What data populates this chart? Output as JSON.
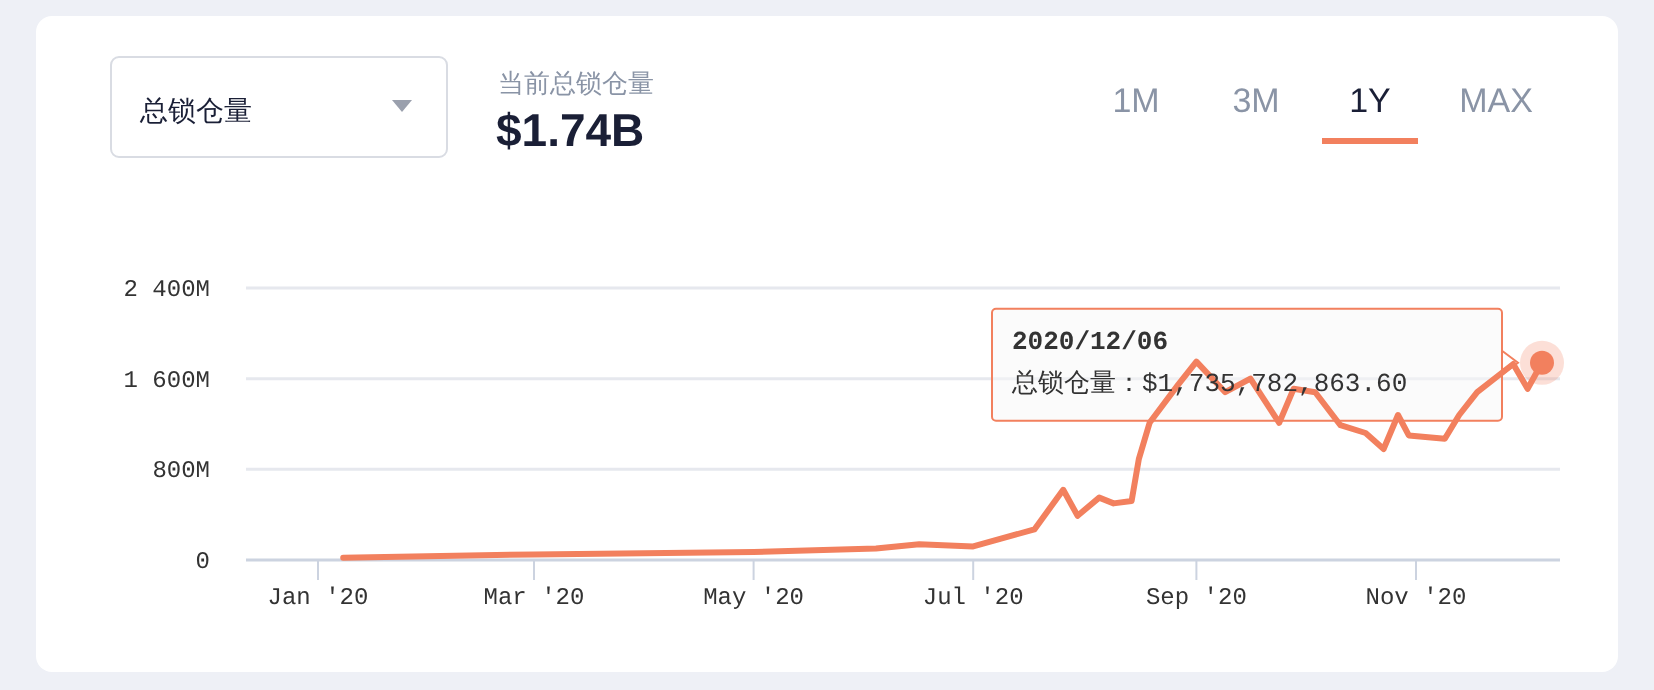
{
  "chart_data": {
    "type": "line",
    "title": "当前总锁仓量",
    "subtitle": "$1.74B",
    "annotations": [
      "总锁仓量",
      "1M",
      "3M",
      "1Y",
      "MAX",
      "2020/12/06",
      "总锁仓量：$1,735,782,863.60"
    ],
    "x": [
      "2020-01-08",
      "2020-03-01",
      "2020-05-01",
      "2020-06-04",
      "2020-06-16",
      "2020-07-01",
      "2020-07-18",
      "2020-07-26",
      "2020-07-30",
      "2020-08-05",
      "2020-08-09",
      "2020-08-14",
      "2020-08-16",
      "2020-08-19",
      "2020-08-27",
      "2020-09-01",
      "2020-09-09",
      "2020-09-16",
      "2020-09-24",
      "2020-09-28",
      "2020-10-04",
      "2020-10-11",
      "2020-10-18",
      "2020-10-23",
      "2020-10-27",
      "2020-10-30",
      "2020-11-09",
      "2020-11-13",
      "2020-11-18",
      "2020-11-28",
      "2020-12-02",
      "2020-12-06"
    ],
    "series": [
      {
        "color": "#f2805e",
        "values": [
          20,
          50,
          70,
          100,
          140,
          120,
          270,
          620,
          390,
          550,
          500,
          520,
          890,
          1210,
          1550,
          1750,
          1480,
          1600,
          1210,
          1510,
          1480,
          1190,
          1120,
          980,
          1280,
          1100,
          1070,
          1280,
          1480,
          1730,
          1510,
          1740
        ]
      }
    ],
    "xlim": [
      "2019-12-12",
      "2020-12-11"
    ],
    "xticks": [
      {
        "value": "2020-01-01",
        "label": "Jan '20"
      },
      {
        "value": "2020-03-01",
        "label": "Mar '20"
      },
      {
        "value": "2020-05-01",
        "label": "May '20"
      },
      {
        "value": "2020-07-01",
        "label": "Jul '20"
      },
      {
        "value": "2020-09-01",
        "label": "Sep '20"
      },
      {
        "value": "2020-11-01",
        "label": "Nov '20"
      }
    ],
    "ylim": [
      0,
      2400
    ],
    "yticks": [
      0,
      {
        "value": 800,
        "label": "800M"
      },
      {
        "value": 1600,
        "label": "1 600M"
      },
      {
        "value": 2400,
        "label": "2 400M"
      }
    ],
    "grid": "y",
    "line_style": "solid"
  }
}
